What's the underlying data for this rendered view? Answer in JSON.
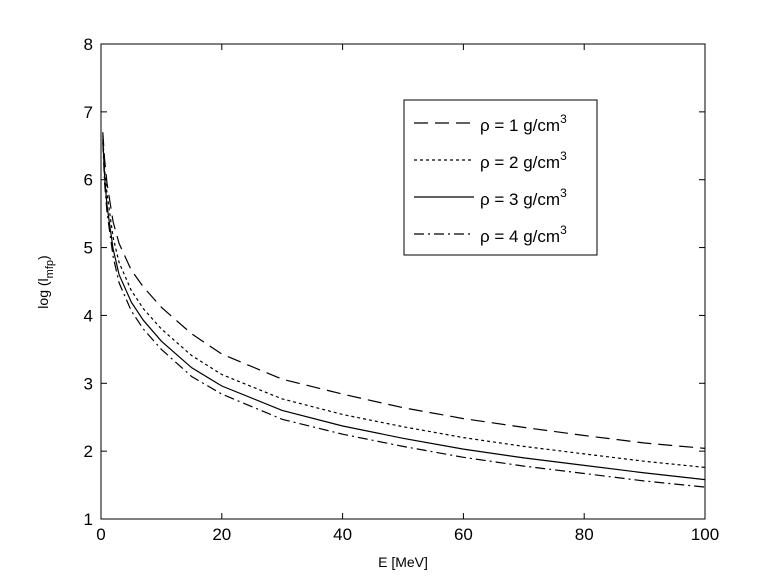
{
  "chart_data": {
    "type": "line",
    "title": "",
    "xlabel": "E [MeV]",
    "ylabel": "log (l",
    "ylabel_subscript": "mfp",
    "ylabel_suffix": ")",
    "xlim": [
      0,
      100
    ],
    "ylim": [
      1,
      8
    ],
    "xticks": [
      "0",
      "20",
      "40",
      "60",
      "80",
      "100"
    ],
    "yticks": [
      "1",
      "2",
      "3",
      "4",
      "5",
      "6",
      "7",
      "8"
    ],
    "grid": false,
    "legend_position": "top-right",
    "series": [
      {
        "name": "ρ = 1 g/cm",
        "name_superscript": "3",
        "line_style": "dashed",
        "x": [
          0.3,
          0.6,
          1,
          2,
          3,
          5,
          7,
          10,
          15,
          20,
          30,
          40,
          50,
          60,
          70,
          80,
          90,
          100
        ],
        "y": [
          6.7,
          6.3,
          5.95,
          5.38,
          5.06,
          4.67,
          4.42,
          4.12,
          3.73,
          3.43,
          3.06,
          2.84,
          2.64,
          2.48,
          2.35,
          2.23,
          2.12,
          2.04
        ]
      },
      {
        "name": "ρ = 2 g/cm",
        "name_superscript": "3",
        "line_style": "dotted",
        "x": [
          0.3,
          0.6,
          1,
          2,
          3,
          5,
          7,
          10,
          15,
          20,
          30,
          40,
          50,
          60,
          70,
          80,
          90,
          100
        ],
        "y": [
          6.65,
          6.15,
          5.8,
          5.15,
          4.78,
          4.37,
          4.1,
          3.8,
          3.41,
          3.13,
          2.77,
          2.54,
          2.36,
          2.2,
          2.07,
          1.96,
          1.85,
          1.76
        ]
      },
      {
        "name": "ρ = 3 g/cm",
        "name_superscript": "3",
        "line_style": "solid",
        "x": [
          0.3,
          0.6,
          1,
          2,
          3,
          5,
          7,
          10,
          15,
          20,
          30,
          40,
          50,
          60,
          70,
          80,
          90,
          100
        ],
        "y": [
          6.6,
          6.05,
          5.62,
          4.98,
          4.6,
          4.2,
          3.93,
          3.62,
          3.23,
          2.96,
          2.6,
          2.37,
          2.19,
          2.03,
          1.9,
          1.79,
          1.68,
          1.58
        ]
      },
      {
        "name": "ρ = 4 g/cm",
        "name_superscript": "3",
        "line_style": "dash-dot",
        "x": [
          0.3,
          0.6,
          1,
          2,
          3,
          5,
          7,
          10,
          15,
          20,
          30,
          40,
          50,
          60,
          70,
          80,
          90,
          100
        ],
        "y": [
          6.55,
          5.95,
          5.52,
          4.87,
          4.48,
          4.07,
          3.8,
          3.5,
          3.1,
          2.84,
          2.47,
          2.25,
          2.07,
          1.91,
          1.78,
          1.67,
          1.56,
          1.47
        ]
      }
    ]
  }
}
